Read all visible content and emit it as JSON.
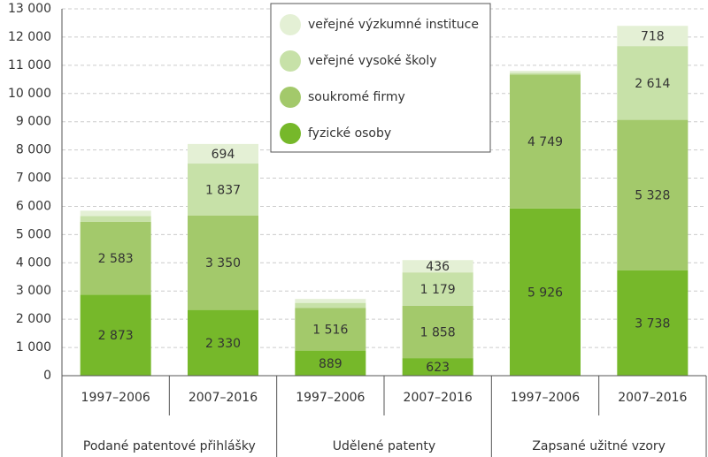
{
  "chart_data": {
    "type": "stacked-bar",
    "categories": [
      "1997–2006",
      "2007–2016",
      "1997–2006",
      "2007–2016",
      "1997–2006",
      "2007–2016"
    ],
    "groups": [
      "Podané patentové přihlášky",
      "Udělené patenty",
      "Zapsané užitné vzory"
    ],
    "series": [
      {
        "name": "fyzické osoby",
        "color": "#76b82a",
        "values": [
          2873,
          2330,
          889,
          623,
          5926,
          3738
        ],
        "value_labels": [
          "2 873",
          "2 330",
          "889",
          "623",
          "5 926",
          "3 738"
        ]
      },
      {
        "name": "soukromé firmy",
        "color": "#a3c96b",
        "values": [
          2583,
          3350,
          1516,
          1858,
          4749,
          5328
        ],
        "value_labels": [
          "2 583",
          "3 350",
          "1 516",
          "1 858",
          "4 749",
          "5 328"
        ]
      },
      {
        "name": "veřejné vysoké školy",
        "color": "#c7e1a8",
        "values": [
          200,
          1837,
          175,
          1179,
          60,
          2614
        ],
        "value_labels": [
          null,
          "1 837",
          null,
          "1 179",
          null,
          "2 614"
        ]
      },
      {
        "name": "veřejné výzkumné instituce",
        "color": "#e4f0d5",
        "values": [
          190,
          694,
          140,
          436,
          70,
          718
        ],
        "value_labels": [
          null,
          "694",
          null,
          "436",
          null,
          "718"
        ]
      }
    ],
    "ylim": [
      0,
      13000
    ],
    "yticks": [
      0,
      {
        "value": 1000,
        "label": "1 000"
      },
      {
        "value": 2000,
        "label": "2 000"
      },
      {
        "value": 3000,
        "label": "3 000"
      },
      {
        "value": 4000,
        "label": "4 000"
      },
      {
        "value": 5000,
        "label": "5 000"
      },
      {
        "value": 6000,
        "label": "6 000"
      },
      {
        "value": 7000,
        "label": "7 000"
      },
      {
        "value": 8000,
        "label": "8 000"
      },
      {
        "value": 9000,
        "label": "9 000"
      },
      {
        "value": 10000,
        "label": "10 000"
      },
      {
        "value": 11000,
        "label": "11 000"
      },
      {
        "value": 12000,
        "label": "12 000"
      },
      {
        "value": 13000,
        "label": "13 000"
      }
    ],
    "grid": true
  }
}
